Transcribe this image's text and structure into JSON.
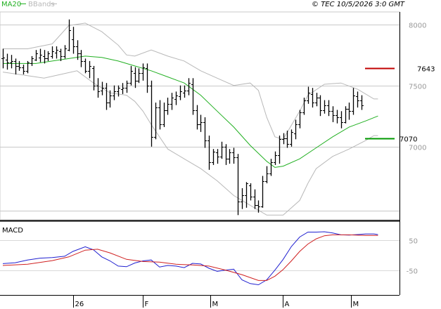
{
  "header": {
    "legend_ma": "MA20",
    "legend_bb": "BBands",
    "copyright": "© TEC 10/5/2026 3:0 GMT"
  },
  "colors": {
    "ma": "#22b022",
    "bbands": "#b8b8b8",
    "price_bars": "#000000",
    "macd_line": "#2020d0",
    "signal_line": "#d02020",
    "resistance": "#c00000",
    "support": "#009900",
    "grid": "#c8c8c8"
  },
  "chart_data": [
    {
      "type": "line",
      "name": "price",
      "x_ticks": [
        "26",
        "F",
        "M",
        "A",
        "M"
      ],
      "y_ticks": [
        8000,
        7500,
        7000
      ],
      "ylim": [
        6430,
        8090
      ],
      "levels": [
        {
          "value": 7643,
          "label": "7643",
          "color": "#c00000"
        },
        {
          "value": 7070,
          "label": "7070",
          "color": "#009900"
        }
      ],
      "ohlc": [
        [
          7720,
          7800,
          7640,
          7730
        ],
        [
          7710,
          7760,
          7630,
          7690
        ],
        [
          7690,
          7750,
          7640,
          7700
        ],
        [
          7700,
          7720,
          7590,
          7660
        ],
        [
          7660,
          7700,
          7620,
          7650
        ],
        [
          7650,
          7670,
          7590,
          7620
        ],
        [
          7620,
          7700,
          7600,
          7690
        ],
        [
          7680,
          7740,
          7660,
          7720
        ],
        [
          7710,
          7790,
          7700,
          7760
        ],
        [
          7730,
          7800,
          7690,
          7750
        ],
        [
          7740,
          7790,
          7680,
          7720
        ],
        [
          7720,
          7780,
          7700,
          7760
        ],
        [
          7740,
          7820,
          7720,
          7780
        ],
        [
          7770,
          7820,
          7720,
          7790
        ],
        [
          7780,
          7800,
          7700,
          7740
        ],
        [
          7740,
          7830,
          7720,
          7800
        ],
        [
          7790,
          8040,
          7780,
          7950
        ],
        [
          7880,
          7980,
          7760,
          7820
        ],
        [
          7820,
          7870,
          7710,
          7760
        ],
        [
          7760,
          7790,
          7650,
          7700
        ],
        [
          7700,
          7720,
          7600,
          7620
        ],
        [
          7620,
          7700,
          7560,
          7660
        ],
        [
          7640,
          7660,
          7460,
          7500
        ],
        [
          7500,
          7560,
          7400,
          7450
        ],
        [
          7460,
          7530,
          7420,
          7480
        ],
        [
          7480,
          7520,
          7300,
          7360
        ],
        [
          7360,
          7460,
          7320,
          7420
        ],
        [
          7420,
          7500,
          7380,
          7450
        ],
        [
          7450,
          7500,
          7410,
          7480
        ],
        [
          7470,
          7520,
          7430,
          7480
        ],
        [
          7480,
          7540,
          7440,
          7520
        ],
        [
          7520,
          7660,
          7500,
          7620
        ],
        [
          7600,
          7650,
          7480,
          7540
        ],
        [
          7540,
          7640,
          7520,
          7600
        ],
        [
          7600,
          7680,
          7540,
          7650
        ],
        [
          7640,
          7680,
          7440,
          7500
        ],
        [
          7500,
          7540,
          7000,
          7080
        ],
        [
          7080,
          7360,
          7060,
          7320
        ],
        [
          7320,
          7380,
          7140,
          7180
        ],
        [
          7180,
          7360,
          7160,
          7300
        ],
        [
          7300,
          7400,
          7260,
          7350
        ],
        [
          7350,
          7440,
          7300,
          7400
        ],
        [
          7390,
          7450,
          7340,
          7420
        ],
        [
          7410,
          7500,
          7380,
          7450
        ],
        [
          7440,
          7500,
          7400,
          7460
        ],
        [
          7460,
          7560,
          7420,
          7520
        ],
        [
          7510,
          7560,
          7260,
          7300
        ],
        [
          7300,
          7340,
          7140,
          7180
        ],
        [
          7180,
          7260,
          7120,
          7200
        ],
        [
          7200,
          7240,
          6990,
          7050
        ],
        [
          7050,
          7090,
          6810,
          6870
        ],
        [
          6870,
          6980,
          6850,
          6960
        ],
        [
          6950,
          6980,
          6860,
          6920
        ],
        [
          6920,
          7040,
          6900,
          7000
        ],
        [
          7000,
          7020,
          6850,
          6900
        ],
        [
          6900,
          6980,
          6860,
          6950
        ],
        [
          6950,
          6990,
          6860,
          6910
        ],
        [
          6910,
          6940,
          6440,
          6550
        ],
        [
          6550,
          6660,
          6490,
          6600
        ],
        [
          6600,
          6710,
          6500,
          6700
        ],
        [
          6680,
          6700,
          6560,
          6590
        ],
        [
          6590,
          6650,
          6490,
          6520
        ],
        [
          6520,
          6560,
          6460,
          6510
        ],
        [
          6510,
          6760,
          6500,
          6720
        ],
        [
          6720,
          6840,
          6700,
          6780
        ],
        [
          6780,
          6900,
          6760,
          6870
        ],
        [
          6870,
          6960,
          6850,
          6930
        ],
        [
          6930,
          7090,
          6860,
          7060
        ],
        [
          7060,
          7110,
          7020,
          7070
        ],
        [
          7070,
          7130,
          6990,
          7020
        ],
        [
          7020,
          7140,
          7000,
          7120
        ],
        [
          7110,
          7220,
          7060,
          7180
        ],
        [
          7180,
          7300,
          7150,
          7280
        ],
        [
          7280,
          7400,
          7260,
          7380
        ],
        [
          7380,
          7490,
          7350,
          7440
        ],
        [
          7430,
          7480,
          7320,
          7360
        ],
        [
          7360,
          7440,
          7330,
          7400
        ],
        [
          7400,
          7420,
          7250,
          7300
        ],
        [
          7300,
          7380,
          7270,
          7340
        ],
        [
          7340,
          7380,
          7250,
          7290
        ],
        [
          7290,
          7330,
          7200,
          7260
        ],
        [
          7260,
          7300,
          7190,
          7240
        ],
        [
          7240,
          7290,
          7150,
          7200
        ],
        [
          7200,
          7330,
          7190,
          7310
        ],
        [
          7310,
          7360,
          7220,
          7290
        ],
        [
          7290,
          7480,
          7260,
          7420
        ],
        [
          7410,
          7450,
          7320,
          7380
        ],
        [
          7380,
          7420,
          7300,
          7340
        ]
      ],
      "ma20": [
        [
          0,
          7680
        ],
        [
          8,
          7680
        ],
        [
          16,
          7720
        ],
        [
          20,
          7740
        ],
        [
          24,
          7730
        ],
        [
          28,
          7700
        ],
        [
          32,
          7660
        ],
        [
          36,
          7620
        ],
        [
          40,
          7570
        ],
        [
          44,
          7520
        ],
        [
          48,
          7420
        ],
        [
          52,
          7290
        ],
        [
          56,
          7160
        ],
        [
          60,
          7010
        ],
        [
          64,
          6880
        ],
        [
          66,
          6830
        ],
        [
          68,
          6840
        ],
        [
          72,
          6900
        ],
        [
          76,
          6990
        ],
        [
          80,
          7080
        ],
        [
          84,
          7160
        ],
        [
          88,
          7210
        ],
        [
          91,
          7250
        ]
      ],
      "bb_upper": [
        [
          0,
          7800
        ],
        [
          6,
          7800
        ],
        [
          12,
          7840
        ],
        [
          16,
          7990
        ],
        [
          20,
          8010
        ],
        [
          24,
          7940
        ],
        [
          28,
          7830
        ],
        [
          30,
          7750
        ],
        [
          32,
          7740
        ],
        [
          36,
          7790
        ],
        [
          40,
          7740
        ],
        [
          44,
          7700
        ],
        [
          48,
          7620
        ],
        [
          52,
          7560
        ],
        [
          56,
          7500
        ],
        [
          60,
          7520
        ],
        [
          62,
          7460
        ],
        [
          64,
          7240
        ],
        [
          66,
          7080
        ],
        [
          68,
          7060
        ],
        [
          72,
          7290
        ],
        [
          74,
          7420
        ],
        [
          78,
          7510
        ],
        [
          82,
          7520
        ],
        [
          86,
          7470
        ],
        [
          90,
          7390
        ],
        [
          91,
          7390
        ]
      ],
      "bb_lower": [
        [
          0,
          7610
        ],
        [
          6,
          7580
        ],
        [
          10,
          7560
        ],
        [
          14,
          7590
        ],
        [
          18,
          7620
        ],
        [
          22,
          7520
        ],
        [
          26,
          7440
        ],
        [
          30,
          7420
        ],
        [
          32,
          7370
        ],
        [
          34,
          7290
        ],
        [
          36,
          7180
        ],
        [
          40,
          6980
        ],
        [
          44,
          6900
        ],
        [
          48,
          6820
        ],
        [
          52,
          6720
        ],
        [
          56,
          6600
        ],
        [
          60,
          6520
        ],
        [
          64,
          6440
        ],
        [
          68,
          6440
        ],
        [
          72,
          6560
        ],
        [
          74,
          6700
        ],
        [
          76,
          6820
        ],
        [
          80,
          6920
        ],
        [
          84,
          6980
        ],
        [
          88,
          7050
        ],
        [
          90,
          7090
        ],
        [
          91,
          7090
        ]
      ]
    },
    {
      "type": "line",
      "name": "MACD",
      "title": "MACD",
      "y_ticks": [
        50,
        -50
      ],
      "ylim": [
        -120,
        100
      ],
      "series": [
        {
          "color": "#2020d0",
          "points": [
            [
              0,
              -27
            ],
            [
              3,
              -24
            ],
            [
              6,
              -15
            ],
            [
              9,
              -9
            ],
            [
              12,
              -7
            ],
            [
              15,
              -3
            ],
            [
              17,
              13
            ],
            [
              20,
              28
            ],
            [
              22,
              18
            ],
            [
              24,
              -5
            ],
            [
              26,
              -18
            ],
            [
              28,
              -35
            ],
            [
              30,
              -37
            ],
            [
              32,
              -25
            ],
            [
              34,
              -18
            ],
            [
              36,
              -15
            ],
            [
              38,
              -38
            ],
            [
              40,
              -33
            ],
            [
              42,
              -35
            ],
            [
              44,
              -40
            ],
            [
              46,
              -26
            ],
            [
              48,
              -28
            ],
            [
              50,
              -42
            ],
            [
              52,
              -52
            ],
            [
              54,
              -48
            ],
            [
              56,
              -45
            ],
            [
              58,
              -80
            ],
            [
              60,
              -92
            ],
            [
              62,
              -96
            ],
            [
              64,
              -80
            ],
            [
              66,
              -48
            ],
            [
              68,
              -13
            ],
            [
              70,
              29
            ],
            [
              72,
              60
            ],
            [
              74,
              76
            ],
            [
              76,
              76
            ],
            [
              78,
              77
            ],
            [
              80,
              73
            ],
            [
              82,
              67
            ],
            [
              84,
              66
            ],
            [
              86,
              68
            ],
            [
              88,
              70
            ],
            [
              90,
              70
            ],
            [
              91,
              68
            ]
          ]
        },
        {
          "color": "#d02020",
          "points": [
            [
              0,
              -33
            ],
            [
              6,
              -29
            ],
            [
              12,
              -17
            ],
            [
              16,
              -5
            ],
            [
              20,
              17
            ],
            [
              23,
              20
            ],
            [
              26,
              8
            ],
            [
              30,
              -13
            ],
            [
              34,
              -20
            ],
            [
              38,
              -22
            ],
            [
              42,
              -29
            ],
            [
              46,
              -31
            ],
            [
              50,
              -35
            ],
            [
              54,
              -48
            ],
            [
              58,
              -63
            ],
            [
              62,
              -82
            ],
            [
              64,
              -82
            ],
            [
              66,
              -68
            ],
            [
              68,
              -46
            ],
            [
              70,
              -18
            ],
            [
              72,
              13
            ],
            [
              74,
              37
            ],
            [
              76,
              54
            ],
            [
              78,
              64
            ],
            [
              80,
              67
            ],
            [
              84,
              67
            ],
            [
              88,
              65
            ],
            [
              91,
              65
            ]
          ]
        }
      ]
    }
  ]
}
